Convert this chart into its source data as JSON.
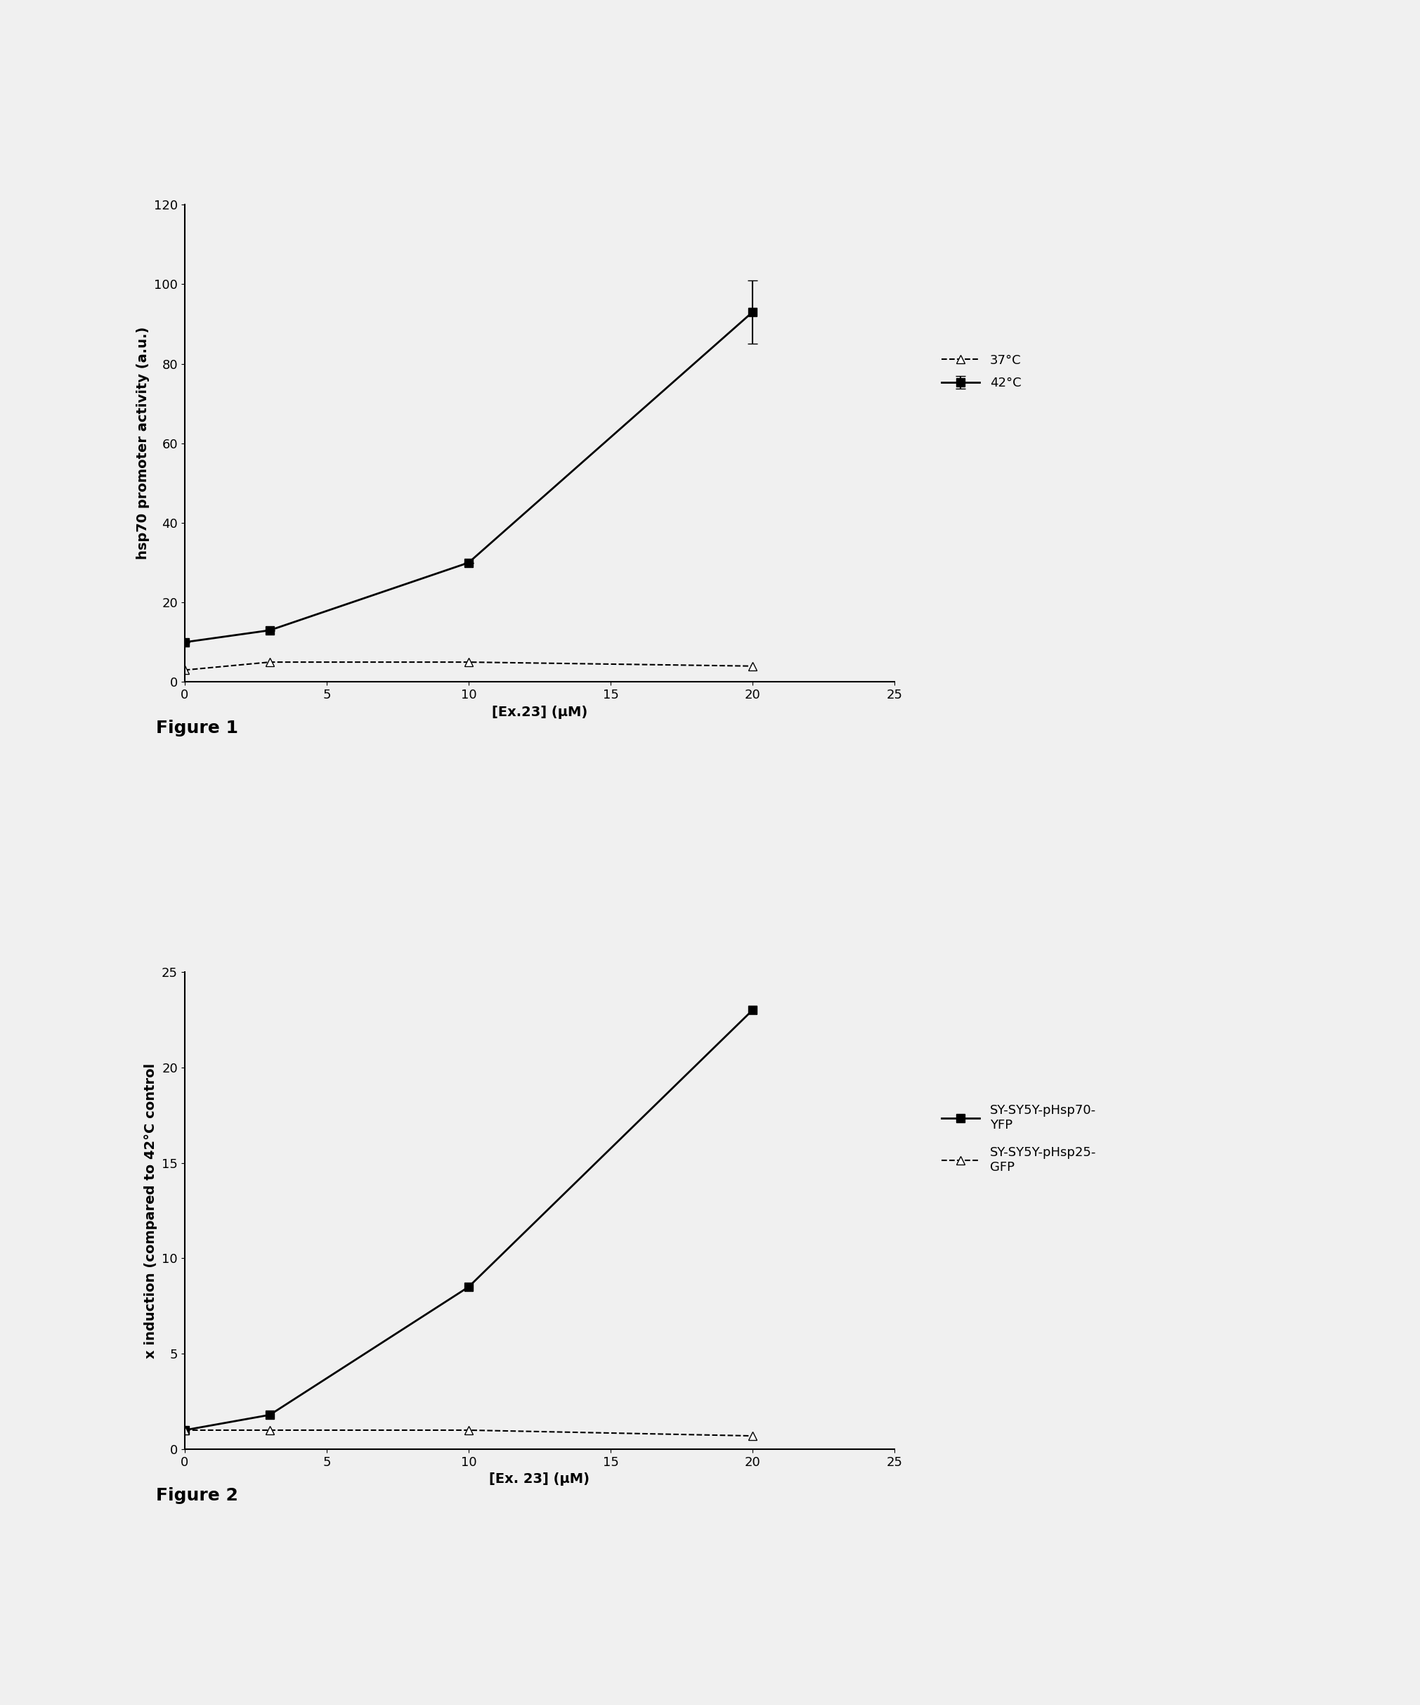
{
  "fig1": {
    "series_42": {
      "x": [
        0,
        3,
        10,
        20
      ],
      "y": [
        10,
        13,
        30,
        93
      ],
      "yerr": [
        0,
        0,
        0,
        8
      ],
      "label": "42°C",
      "marker": "s",
      "markerfacecolor": "black",
      "color": "black",
      "linestyle": "-",
      "linewidth": 2.0,
      "markersize": 8
    },
    "series_37": {
      "x": [
        0,
        3,
        10,
        20
      ],
      "y": [
        3,
        5,
        5,
        4
      ],
      "label": "37°C",
      "marker": "^",
      "markerfacecolor": "white",
      "color": "black",
      "linestyle": "--",
      "linewidth": 1.5,
      "markersize": 9
    },
    "xlabel": "[Ex.23] (μM)",
    "ylabel": "hsp70 promoter activity (a.u.)",
    "xlim": [
      0,
      25
    ],
    "ylim": [
      0,
      120
    ],
    "xticks": [
      0,
      5,
      10,
      15,
      20,
      25
    ],
    "yticks": [
      0,
      20,
      40,
      60,
      80,
      100,
      120
    ],
    "figure_label": "Figure 1"
  },
  "fig2": {
    "series_hsp70": {
      "x": [
        0,
        3,
        10,
        20
      ],
      "y": [
        1.0,
        1.8,
        8.5,
        23.0
      ],
      "label": "SY-SY5Y-pHsp70-\nYFP",
      "marker": "s",
      "markerfacecolor": "black",
      "color": "black",
      "linestyle": "-",
      "linewidth": 2.0,
      "markersize": 8
    },
    "series_hsp25": {
      "x": [
        0,
        3,
        10,
        20
      ],
      "y": [
        1.0,
        1.0,
        1.0,
        0.7
      ],
      "label": "SY-SY5Y-pHsp25-\nGFP",
      "marker": "^",
      "markerfacecolor": "white",
      "color": "black",
      "linestyle": "--",
      "linewidth": 1.5,
      "markersize": 9
    },
    "xlabel": "[Ex. 23] (μM)",
    "ylabel": "x induction (compared to 42°C control",
    "xlim": [
      0,
      25
    ],
    "ylim": [
      0,
      25
    ],
    "xticks": [
      0,
      5,
      10,
      15,
      20,
      25
    ],
    "yticks": [
      0,
      5,
      10,
      15,
      20,
      25
    ],
    "figure_label": "Figure 2"
  },
  "background_color": "#f0f0f0",
  "axes_bg": "#f0f0f0",
  "font_size": 14,
  "label_fontsize": 14,
  "tick_fontsize": 13,
  "legend_fontsize": 13,
  "figure_label_fontsize": 18
}
